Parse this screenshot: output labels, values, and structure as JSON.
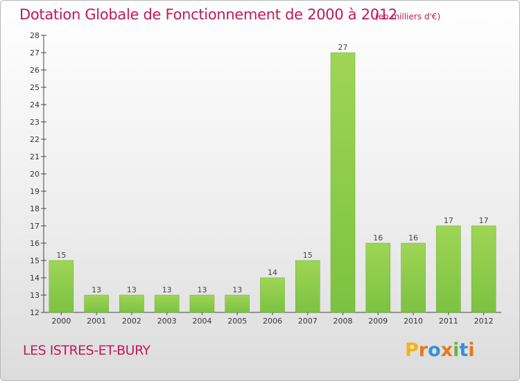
{
  "chart_data": {
    "type": "bar",
    "title": "Dotation Globale de Fonctionnement de 2000 à 2012",
    "unit_note": "(en milliers d'€)",
    "categories": [
      "2000",
      "2001",
      "2002",
      "2003",
      "2004",
      "2005",
      "2006",
      "2007",
      "2008",
      "2009",
      "2010",
      "2011",
      "2012"
    ],
    "values": [
      15,
      13,
      13,
      13,
      13,
      13,
      14,
      15,
      27,
      16,
      16,
      17,
      17
    ],
    "ylim": [
      12,
      28
    ],
    "yticks": [
      12,
      13,
      14,
      15,
      16,
      17,
      18,
      19,
      20,
      21,
      22,
      23,
      24,
      25,
      26,
      27,
      28
    ],
    "grid": false,
    "bar_color": "#7cc242",
    "bar_color_top": "#9fd556"
  },
  "commune": "LES ISTRES-ET-BURY",
  "logo": {
    "letters": [
      "P",
      "r",
      "o",
      "x",
      "i",
      "t",
      "i"
    ],
    "colors": [
      "#f2b21c",
      "#e8761b",
      "#3a8fd6",
      "#e8761b",
      "#6cb33f",
      "#3a8fd6",
      "#e8761b"
    ]
  },
  "colors": {
    "accent": "#c2185b"
  }
}
